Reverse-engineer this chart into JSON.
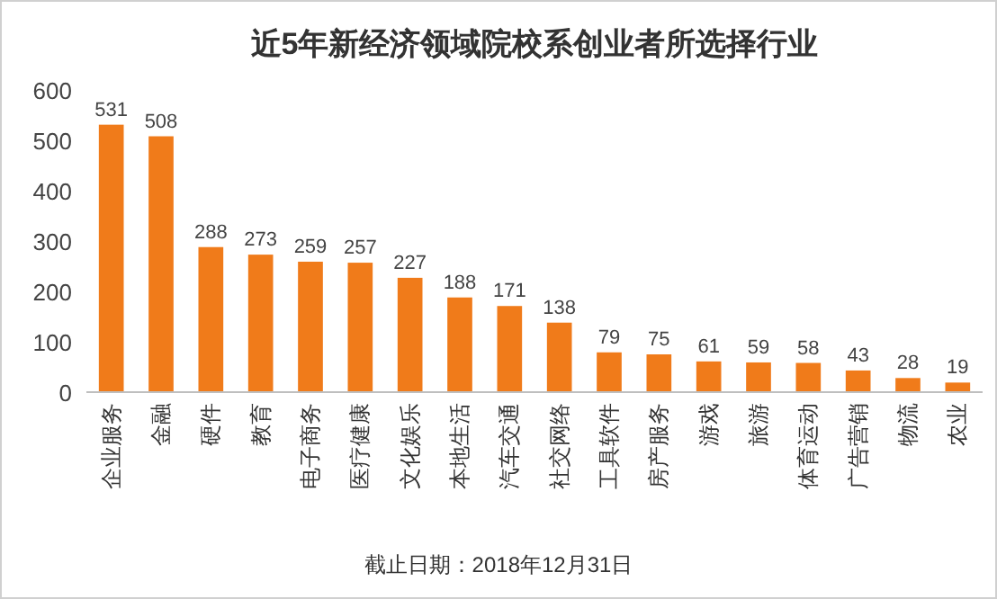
{
  "chart_data": {
    "type": "bar",
    "title": "近5年新经济领域院校系创业者所选择行业",
    "categories": [
      "企业服务",
      "金融",
      "硬件",
      "教育",
      "电子商务",
      "医疗健康",
      "文化娱乐",
      "本地生活",
      "汽车交通",
      "社交网络",
      "工具软件",
      "房产服务",
      "游戏",
      "旅游",
      "体育运动",
      "广告营销",
      "物流",
      "农业"
    ],
    "values": [
      531,
      508,
      288,
      273,
      259,
      257,
      227,
      188,
      171,
      138,
      79,
      75,
      61,
      59,
      58,
      43,
      28,
      19
    ],
    "color": "#f07b1a",
    "ylim": [
      0,
      600
    ],
    "yticks": [
      0,
      100,
      200,
      300,
      400,
      500,
      600
    ],
    "data_labels": true,
    "annotations": [
      "截止日期：2018年12月31日"
    ]
  }
}
